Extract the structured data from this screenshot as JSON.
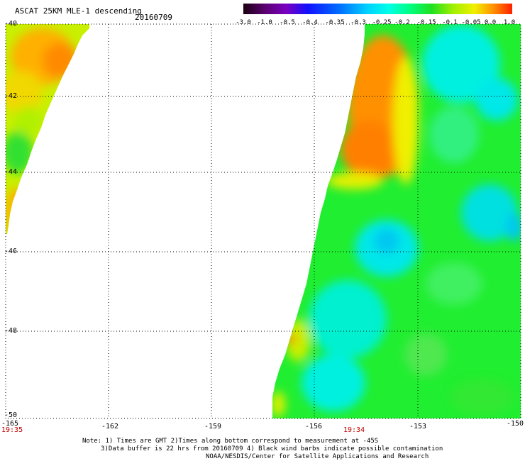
{
  "header": {
    "title": "ASCAT 25KM MLE-1 descending",
    "date": "20160709"
  },
  "colorbar": {
    "labels": [
      "-3.0",
      "-1.0",
      "-0.5",
      "-0.4",
      "-0.35",
      "-0.3",
      "-0.25",
      "-0.2",
      "-0.15",
      "-0.1",
      "-0.05",
      "0.0",
      "1.0"
    ],
    "colors": [
      "#1a0010",
      "#5a0070",
      "#7a00c0",
      "#1010ff",
      "#0070ff",
      "#00d0ff",
      "#00ffe8",
      "#00ff80",
      "#20e020",
      "#a0f000",
      "#f0f000",
      "#ff9000",
      "#ff2000"
    ]
  },
  "axes": {
    "x_ticks": [
      "-165",
      "-162",
      "-159",
      "-156",
      "-153",
      "-150"
    ],
    "y_ticks": [
      "-40",
      "-42",
      "-44",
      "-46",
      "-48",
      "-50"
    ],
    "x_range": [
      -165,
      -150
    ],
    "y_range": [
      -40,
      -50
    ],
    "time_left": "19:35",
    "time_center": "19:34",
    "grid": "dotted"
  },
  "notes": {
    "line1": "Note: 1) Times are GMT 2)Times along bottom correspond to measurement at -45S",
    "line2": "3)Data buffer is 22 hrs from 20160709 4) Black wind barbs indicate possible contamination",
    "line3": "NOAA/NESDIS/Center for Satellite Applications and Research"
  }
}
